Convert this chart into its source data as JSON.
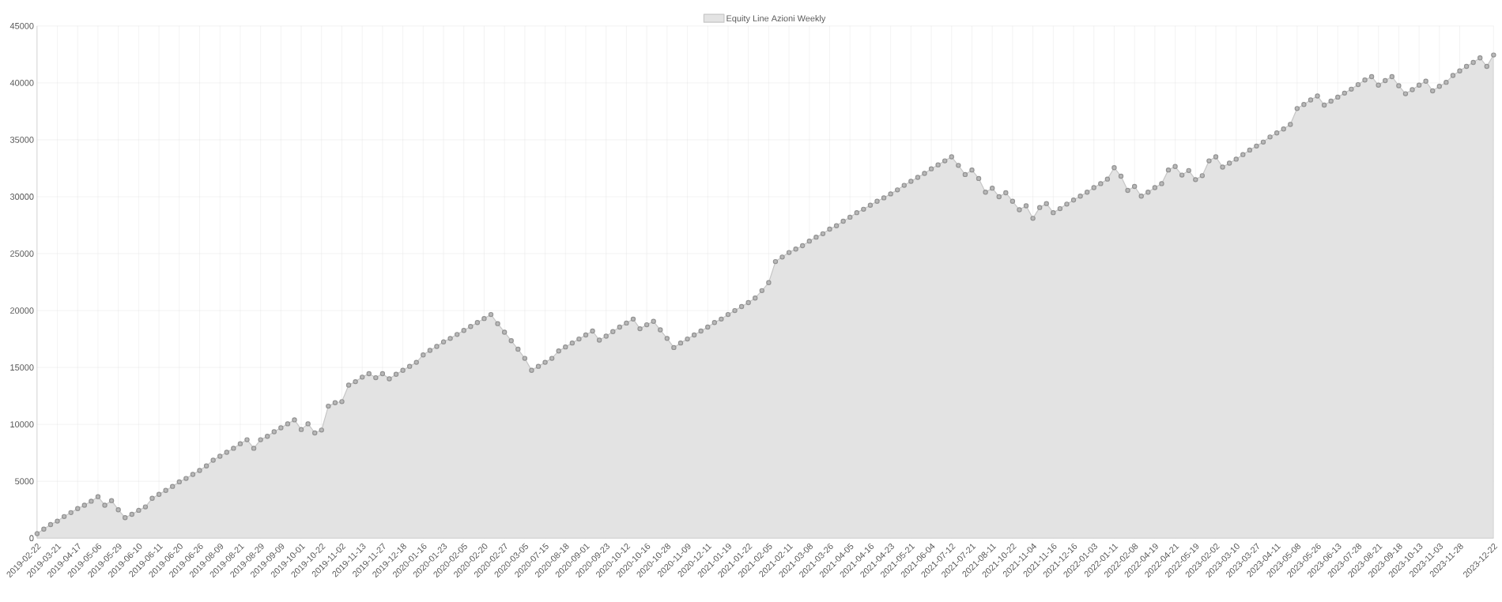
{
  "chart_data": {
    "type": "area",
    "categories": [
      "2019-02-22",
      null,
      null,
      "2019-03-21",
      null,
      null,
      "2019-04-17",
      null,
      null,
      "2019-05-06",
      null,
      null,
      "2019-05-29",
      null,
      null,
      "2019-06-10",
      null,
      null,
      "2019-06-11",
      null,
      null,
      "2019-06-20",
      null,
      null,
      "2019-06-26",
      null,
      null,
      "2019-08-09",
      null,
      null,
      "2019-08-21",
      null,
      null,
      "2019-08-29",
      null,
      null,
      "2019-09-09",
      null,
      null,
      "2019-10-01",
      null,
      null,
      "2019-10-22",
      null,
      null,
      "2019-11-02",
      null,
      null,
      "2019-11-13",
      null,
      null,
      "2019-11-27",
      null,
      null,
      "2019-12-18",
      null,
      null,
      "2020-01-16",
      null,
      null,
      "2020-01-23",
      null,
      null,
      "2020-02-05",
      null,
      null,
      "2020-02-20",
      null,
      null,
      "2020-02-27",
      null,
      null,
      "2020-03-05",
      null,
      null,
      "2020-07-15",
      null,
      null,
      "2020-08-18",
      null,
      null,
      "2020-09-01",
      null,
      null,
      "2020-09-23",
      null,
      null,
      "2020-10-12",
      null,
      null,
      "2020-10-16",
      null,
      null,
      "2020-10-28",
      null,
      null,
      "2020-11-09",
      null,
      null,
      "2020-12-11",
      null,
      null,
      "2021-01-19",
      null,
      null,
      "2021-01-22",
      null,
      null,
      "2021-02-05",
      null,
      null,
      "2021-02-11",
      null,
      null,
      "2021-03-08",
      null,
      null,
      "2021-03-26",
      null,
      null,
      "2021-04-05",
      null,
      null,
      "2021-04-16",
      null,
      null,
      "2021-04-23",
      null,
      null,
      "2021-05-21",
      null,
      null,
      "2021-06-04",
      null,
      null,
      "2021-07-12",
      null,
      null,
      "2021-07-21",
      null,
      null,
      "2021-08-11",
      null,
      null,
      "2021-10-22",
      null,
      null,
      "2021-11-04",
      null,
      null,
      "2021-11-16",
      null,
      null,
      "2021-12-16",
      null,
      null,
      "2022-01-03",
      null,
      null,
      "2022-01-11",
      null,
      null,
      "2022-02-08",
      null,
      null,
      "2022-04-19",
      null,
      null,
      "2022-04-21",
      null,
      null,
      "2022-05-19",
      null,
      null,
      "2023-02-02",
      null,
      null,
      "2023-03-10",
      null,
      null,
      "2023-03-27",
      null,
      null,
      "2023-04-11",
      null,
      null,
      "2023-05-08",
      null,
      null,
      "2023-05-26",
      null,
      null,
      "2023-06-13",
      null,
      null,
      "2023-07-28",
      null,
      null,
      "2023-08-21",
      null,
      null,
      "2023-09-18",
      null,
      null,
      "2023-10-13",
      null,
      null,
      "2023-11-03",
      null,
      null,
      "2023-11-28",
      null,
      null,
      null,
      null,
      "2023-12-22"
    ],
    "series": [
      {
        "name": "Equity Line Azioni Weekly",
        "color": "#b8b8b8",
        "values": [
          400,
          800,
          1200,
          1500,
          1900,
          2250,
          2600,
          2900,
          3250,
          3650,
          2900,
          3300,
          2500,
          1800,
          2100,
          2450,
          2750,
          3500,
          3850,
          4200,
          4550,
          4950,
          5250,
          5600,
          5950,
          6350,
          6850,
          7200,
          7550,
          7900,
          8300,
          8650,
          7900,
          8650,
          8950,
          9350,
          9700,
          10050,
          10400,
          9550,
          10050,
          9250,
          9500,
          11600,
          11900,
          12000,
          13450,
          13750,
          14150,
          14450,
          14100,
          14450,
          14000,
          14400,
          14750,
          15100,
          15450,
          16100,
          16500,
          16850,
          17250,
          17550,
          17900,
          18250,
          18600,
          18950,
          19300,
          19650,
          18850,
          18100,
          17350,
          16600,
          15800,
          14750,
          15100,
          15450,
          15800,
          16450,
          16800,
          17150,
          17500,
          17850,
          18200,
          17400,
          17750,
          18150,
          18550,
          18900,
          19250,
          18400,
          18750,
          19050,
          18300,
          17550,
          16750,
          17150,
          17500,
          17850,
          18200,
          18550,
          18950,
          19250,
          19650,
          20000,
          20350,
          20700,
          21100,
          21750,
          22450,
          24300,
          24700,
          25100,
          25400,
          25700,
          26100,
          26450,
          26750,
          27150,
          27450,
          27850,
          28200,
          28600,
          28900,
          29250,
          29600,
          29900,
          30250,
          30600,
          31000,
          31350,
          31700,
          32050,
          32450,
          32800,
          33150,
          33500,
          32750,
          31950,
          32350,
          31600,
          30400,
          30750,
          30000,
          30350,
          29600,
          28850,
          29200,
          28100,
          29050,
          29400,
          28600,
          28950,
          29350,
          29700,
          30050,
          30400,
          30800,
          31150,
          31550,
          32550,
          31800,
          30550,
          30900,
          30050,
          30400,
          30800,
          31150,
          32350,
          32650,
          31900,
          32300,
          31500,
          31850,
          33150,
          33500,
          32600,
          32950,
          33300,
          33700,
          34100,
          34450,
          34800,
          35250,
          35600,
          35950,
          36350,
          37750,
          38100,
          38500,
          38850,
          38050,
          38400,
          38750,
          39100,
          39450,
          39850,
          40250,
          40550,
          39800,
          40200,
          40550,
          39750,
          39050,
          39400,
          39800,
          40150,
          39300,
          39700,
          40050,
          40650,
          41050,
          41450,
          41800,
          42200,
          41450,
          42450
        ]
      }
    ],
    "ylim": [
      0,
      45000
    ],
    "yticks": [
      0,
      5000,
      10000,
      15000,
      20000,
      25000,
      30000,
      35000,
      40000,
      45000
    ],
    "grid": true,
    "legend": "top",
    "marker": "circle"
  }
}
